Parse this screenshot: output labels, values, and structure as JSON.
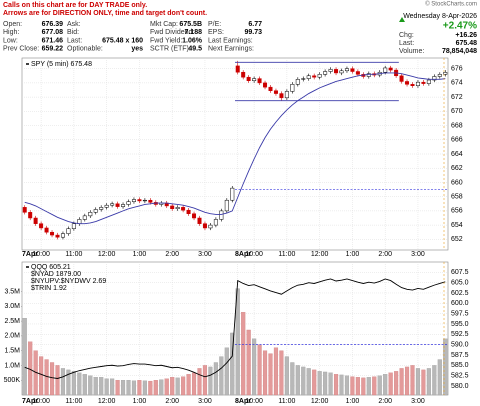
{
  "header": {
    "notes": [
      "Calls on this chart are for DAY TRADE only.",
      "Arrows are for DIRECTION ONLY, time and target don't count."
    ],
    "quote": [
      [
        {
          "label": "Open:",
          "value": "676.39"
        },
        {
          "label": "Ask:"
        },
        {
          "label": "Mkt Cap:",
          "value": "675.5B"
        },
        {
          "label": "P/E:",
          "value": "6.77"
        }
      ],
      [
        {
          "label": "High:",
          "value": "677.08"
        },
        {
          "label": "Bid:"
        },
        {
          "label": "Fwd Dividend:",
          "value": "7.188"
        },
        {
          "label": "EPS:",
          "value": "99.73"
        }
      ],
      [
        {
          "label": "Low:",
          "value": "671.46"
        },
        {
          "label": "Last:",
          "value": "675.48 x 160"
        },
        {
          "label": "Fwd Yield:",
          "value": "1.06%"
        },
        {
          "label": "Last Earnings:"
        }
      ],
      [
        {
          "label": "Prev Close:",
          "value": "659.22"
        },
        {
          "label": "Optionable:",
          "value": "yes"
        },
        {
          "label": "SCTR (ETF):",
          "value": "49.5"
        },
        {
          "label": "Next Earnings:"
        }
      ]
    ],
    "copyright": "© StockCharts.com",
    "date": "Wednesday 8-Apr-2026",
    "change_pct": "+2.47%",
    "summary": [
      {
        "label": "Chg:",
        "value": "+16.26"
      },
      {
        "label": "Last:",
        "value": "675.48"
      },
      {
        "label": "Volume:",
        "value": "78,854,048"
      }
    ]
  },
  "chart_data": [
    {
      "type": "candlestick",
      "legend": "SPY (5 min) 675.48",
      "up_color": "#000000",
      "down_color": "#cc0000",
      "grid": true,
      "categories": [
        "7Apr",
        null,
        null,
        "10:00",
        null,
        null,
        null,
        null,
        null,
        "11:00",
        null,
        null,
        null,
        null,
        null,
        "12:00",
        null,
        null,
        null,
        null,
        null,
        "1:00",
        null,
        null,
        null,
        null,
        null,
        "2:00",
        null,
        null,
        null,
        null,
        null,
        "3:00",
        null,
        null,
        null,
        null,
        null,
        "8Apr",
        null,
        null,
        "10:00",
        null,
        null,
        null,
        null,
        null,
        "11:00",
        null,
        null,
        null,
        null,
        null,
        "12:00",
        null,
        null,
        null,
        null,
        null,
        "1:00",
        null,
        null,
        null,
        null,
        null,
        "2:00",
        null,
        null,
        null,
        null,
        null,
        "3:00",
        null,
        null,
        null,
        null,
        null
      ],
      "open": [
        656.5,
        655.8,
        655.0,
        654.2,
        653.6,
        653.0,
        652.6,
        652.3,
        652.8,
        653.5,
        654.2,
        654.8,
        655.3,
        655.8,
        656.2,
        656.5,
        656.8,
        657.0,
        656.6,
        656.9,
        657.3,
        657.6,
        657.4,
        657.5,
        657.2,
        656.9,
        657.1,
        656.7,
        656.3,
        656.5,
        656.1,
        655.6,
        655.0,
        654.2,
        653.6,
        654.0,
        654.8,
        656.0,
        657.5,
        676.39,
        675.5,
        674.8,
        674.3,
        674.6,
        674.0,
        673.4,
        672.9,
        672.5,
        671.9,
        672.8,
        673.8,
        674.5,
        674.6,
        675.0,
        674.8,
        675.2,
        675.6,
        675.9,
        675.4,
        675.7,
        676.0,
        675.6,
        675.2,
        674.9,
        675.3,
        675.1,
        675.5,
        676.1,
        675.8,
        675.0,
        674.2,
        673.8,
        673.6,
        674.1,
        673.9,
        674.4,
        674.9,
        675.2
      ],
      "high": [
        656.8,
        656.1,
        655.3,
        654.5,
        653.9,
        653.3,
        652.9,
        653.1,
        653.8,
        654.5,
        655.1,
        655.6,
        656.1,
        656.5,
        656.8,
        657.1,
        657.3,
        657.3,
        657.2,
        657.6,
        657.9,
        657.9,
        657.8,
        657.8,
        657.5,
        657.4,
        657.4,
        657.0,
        656.8,
        656.8,
        656.4,
        655.9,
        655.3,
        654.5,
        654.3,
        655.1,
        656.3,
        657.8,
        659.5,
        677.08,
        675.8,
        675.1,
        674.9,
        674.9,
        674.3,
        673.7,
        673.2,
        672.8,
        673.1,
        674.1,
        674.8,
        674.9,
        675.3,
        675.3,
        675.5,
        675.9,
        676.2,
        676.2,
        676.0,
        676.3,
        676.3,
        675.9,
        675.5,
        675.6,
        675.6,
        675.8,
        676.4,
        676.4,
        676.1,
        675.3,
        674.5,
        674.1,
        674.4,
        674.4,
        674.7,
        675.2,
        675.5,
        675.8
      ],
      "low": [
        655.5,
        654.7,
        653.9,
        653.3,
        652.7,
        652.3,
        652.0,
        652.0,
        652.5,
        653.2,
        653.9,
        654.5,
        655.0,
        655.5,
        655.9,
        656.2,
        656.5,
        656.3,
        656.3,
        656.6,
        657.0,
        657.1,
        657.1,
        656.9,
        656.6,
        656.6,
        656.4,
        656.0,
        656.0,
        655.8,
        655.3,
        654.7,
        653.9,
        653.3,
        653.3,
        653.7,
        654.5,
        655.7,
        657.2,
        675.2,
        674.5,
        674.0,
        674.0,
        673.7,
        673.1,
        672.6,
        672.2,
        671.46,
        671.6,
        672.5,
        673.5,
        674.2,
        674.3,
        674.5,
        674.5,
        674.9,
        675.3,
        675.1,
        675.1,
        675.4,
        675.3,
        674.9,
        674.6,
        674.6,
        674.8,
        674.8,
        675.2,
        675.5,
        674.7,
        673.9,
        673.5,
        673.3,
        673.3,
        673.6,
        673.6,
        674.1,
        674.6,
        674.9
      ],
      "close": [
        655.8,
        655.0,
        654.2,
        653.6,
        653.0,
        652.6,
        652.3,
        652.8,
        653.5,
        654.2,
        654.8,
        655.3,
        655.8,
        656.2,
        656.5,
        656.8,
        657.0,
        656.6,
        656.9,
        657.3,
        657.6,
        657.4,
        657.5,
        657.2,
        656.9,
        657.1,
        656.7,
        656.3,
        656.5,
        656.1,
        655.6,
        655.0,
        654.2,
        653.6,
        654.0,
        654.8,
        656.0,
        657.5,
        659.2,
        675.5,
        674.8,
        674.3,
        674.6,
        674.0,
        673.4,
        672.9,
        672.5,
        671.9,
        672.8,
        673.8,
        674.5,
        674.6,
        675.0,
        674.8,
        675.2,
        675.6,
        675.9,
        675.4,
        675.7,
        676.0,
        675.6,
        675.2,
        674.9,
        675.3,
        675.1,
        675.5,
        676.1,
        675.8,
        675.0,
        674.2,
        673.8,
        673.6,
        674.1,
        673.9,
        674.4,
        674.9,
        675.2,
        675.48
      ],
      "ma": {
        "color": "#3a3aa8",
        "values": [
          657.2,
          657.0,
          656.7,
          656.3,
          655.9,
          655.5,
          655.1,
          654.8,
          654.5,
          654.3,
          654.2,
          654.2,
          654.3,
          654.5,
          654.8,
          655.1,
          655.4,
          655.7,
          656.0,
          656.3,
          656.5,
          656.7,
          656.9,
          657.0,
          657.1,
          657.1,
          657.1,
          657.0,
          656.9,
          656.8,
          656.6,
          656.4,
          656.1,
          655.8,
          655.6,
          655.5,
          655.5,
          655.7,
          656.0,
          657.9,
          659.8,
          661.6,
          663.3,
          664.9,
          666.3,
          667.5,
          668.5,
          669.4,
          670.2,
          670.9,
          671.5,
          672.0,
          672.5,
          672.9,
          673.3,
          673.6,
          673.9,
          674.2,
          674.4,
          674.6,
          674.8,
          675.0,
          675.1,
          675.2,
          675.2,
          675.3,
          675.4,
          675.4,
          675.4,
          675.3,
          675.1,
          674.9,
          674.7,
          674.6,
          674.5,
          674.5,
          674.5,
          674.6
        ]
      },
      "hlines": [
        {
          "value": 676.9,
          "style": "solid",
          "color": "#3a3aa8"
        },
        {
          "value": 671.5,
          "style": "solid",
          "color": "#3a3aa8"
        },
        {
          "value": 659.0,
          "style": "dashed",
          "color": "#3a3ae0"
        }
      ],
      "ylim": [
        650.5,
        677.5
      ],
      "yticks": [
        652,
        654,
        656,
        658,
        660,
        662,
        664,
        666,
        668,
        670,
        672,
        674,
        676
      ]
    },
    {
      "type": "line",
      "grid": true,
      "legend_extra": [
        "$NYAD 1879.00",
        "$NYUPV:$NYDWV 2.69",
        "$TRIN 1.92"
      ],
      "series": [
        {
          "name": "QQQ 605.21",
          "color": "#000000",
          "values": [
            584.5,
            584.0,
            583.3,
            582.8,
            582.3,
            582.0,
            581.8,
            582.2,
            582.8,
            583.3,
            583.7,
            584.0,
            584.3,
            584.5,
            584.7,
            584.9,
            585.0,
            584.8,
            584.9,
            585.2,
            585.4,
            585.3,
            585.3,
            585.1,
            584.9,
            585.0,
            584.7,
            584.4,
            584.5,
            584.2,
            583.8,
            583.3,
            582.7,
            582.2,
            582.6,
            583.3,
            584.3,
            585.6,
            587.2,
            605.5,
            604.8,
            604.3,
            604.5,
            604.0,
            603.5,
            603.0,
            602.6,
            602.2,
            603.0,
            603.8,
            604.4,
            604.6,
            605.0,
            604.8,
            605.2,
            605.6,
            605.9,
            605.4,
            605.6,
            605.9,
            605.5,
            605.1,
            604.8,
            605.1,
            604.9,
            605.3,
            605.9,
            605.5,
            604.6,
            603.8,
            603.4,
            603.2,
            603.6,
            603.4,
            603.9,
            604.4,
            604.8,
            605.21
          ]
        },
        {
          "type": "bar",
          "axis": "y2",
          "color": "#e39a9a",
          "values": [
            2600000,
            1800000,
            1500000,
            1300000,
            1200000,
            1100000,
            1000000,
            900000,
            850000,
            800000,
            750000,
            700000,
            650000,
            600000,
            600000,
            550000,
            550000,
            500000,
            500000,
            500000,
            480000,
            500000,
            480000,
            470000,
            500000,
            520000,
            550000,
            600000,
            580000,
            620000,
            700000,
            750000,
            900000,
            1000000,
            950000,
            1100000,
            1300000,
            1600000,
            2100000,
            3600000,
            2800000,
            2200000,
            1900000,
            1700000,
            1500000,
            1400000,
            1600000,
            1500000,
            1300000,
            1100000,
            1000000,
            950000,
            900000,
            850000,
            800000,
            780000,
            750000,
            700000,
            680000,
            650000,
            620000,
            600000,
            580000,
            600000,
            620000,
            650000,
            700000,
            750000,
            800000,
            900000,
            950000,
            1000000,
            900000,
            850000,
            900000,
            1000000,
            1200000,
            1900000
          ]
        }
      ],
      "hlines": [
        {
          "value": 590.0,
          "style": "dashed",
          "color": "#3a3ae0"
        }
      ],
      "ylim": [
        577.8,
        610
      ],
      "yticks": [
        {
          "value": 580,
          "label": "580.0"
        },
        582.5,
        {
          "value": 585,
          "label": "585.0"
        },
        587.5,
        {
          "value": 590,
          "label": "590.0"
        },
        592.5,
        {
          "value": 595,
          "label": "595.0"
        },
        597.5,
        {
          "value": 600,
          "label": "600.0"
        },
        602.5,
        {
          "value": 605,
          "label": "605.0"
        },
        607.5
      ],
      "y2lim": [
        0,
        4500000
      ],
      "y2ticks": [
        {
          "value": 500000,
          "label": "500K"
        },
        {
          "value": 1000000,
          "label": "1.0M"
        },
        {
          "value": 1500000,
          "label": "1.5M"
        },
        {
          "value": 2000000,
          "label": "2.0M"
        },
        {
          "value": 2500000,
          "label": "2.5M"
        },
        {
          "value": 3000000,
          "label": "3.0M"
        },
        {
          "value": 3500000,
          "label": "3.5M"
        }
      ]
    }
  ]
}
